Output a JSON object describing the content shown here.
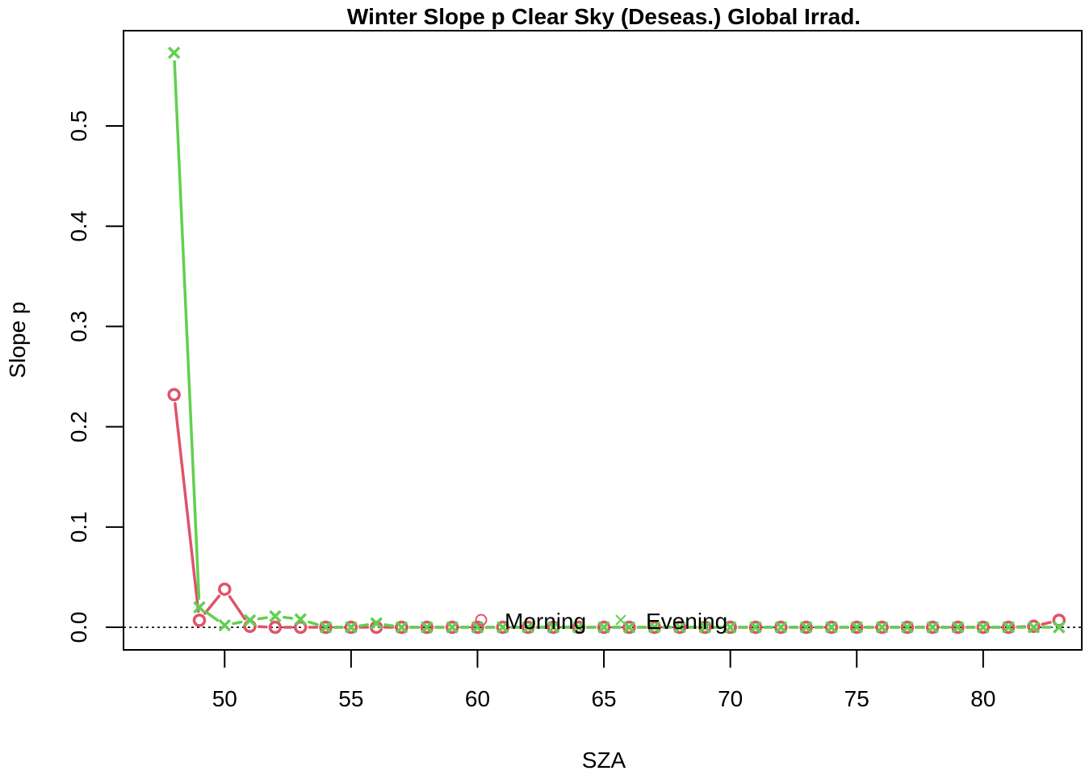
{
  "chart_data": {
    "type": "line",
    "title": "Winter Slope p Clear Sky (Deseas.) Global Irrad.",
    "xlabel": "SZA",
    "ylabel": "Slope p",
    "xlim": [
      46.0,
      83.9
    ],
    "ylim": [
      -0.0225,
      0.595
    ],
    "x_ticks": [
      50,
      55,
      60,
      65,
      70,
      75,
      80
    ],
    "y_ticks": [
      0.0,
      0.1,
      0.2,
      0.3,
      0.4,
      0.5
    ],
    "y_tick_labels": [
      "0.0",
      "0.1",
      "0.2",
      "0.3",
      "0.4",
      "0.5"
    ],
    "reference_line": {
      "y": 0,
      "style": "dotted"
    },
    "legend": {
      "placement": "bottom-center",
      "entries": [
        "Morning",
        "Evening"
      ]
    },
    "series": [
      {
        "name": "Morning",
        "marker": "circle",
        "color": "#DF536B",
        "points": [
          [
            48,
            0.232
          ],
          [
            49,
            0.007
          ],
          [
            50,
            0.038
          ],
          [
            51,
            0.001
          ],
          [
            52,
            0.0
          ],
          [
            53,
            0.0
          ],
          [
            54,
            0.0
          ],
          [
            55,
            0.0
          ],
          [
            56,
            0.0
          ],
          [
            57,
            0.0
          ],
          [
            58,
            0.0
          ],
          [
            59,
            0.0
          ],
          [
            60,
            0.0
          ],
          [
            61,
            0.0
          ],
          [
            62,
            0.0
          ],
          [
            63,
            0.0
          ],
          [
            64,
            0.0
          ],
          [
            65,
            0.0
          ],
          [
            66,
            0.0
          ],
          [
            67,
            0.0
          ],
          [
            68,
            0.0
          ],
          [
            69,
            0.0
          ],
          [
            70,
            0.0
          ],
          [
            71,
            0.0
          ],
          [
            72,
            0.0
          ],
          [
            73,
            0.0
          ],
          [
            74,
            0.0
          ],
          [
            75,
            0.0
          ],
          [
            76,
            0.0
          ],
          [
            77,
            0.0
          ],
          [
            78,
            0.0
          ],
          [
            79,
            0.0
          ],
          [
            80,
            0.0
          ],
          [
            81,
            0.0
          ],
          [
            82,
            0.001
          ],
          [
            83,
            0.007
          ]
        ]
      },
      {
        "name": "Evening",
        "marker": "x",
        "color": "#61D04F",
        "points": [
          [
            48,
            0.573
          ],
          [
            49,
            0.02
          ],
          [
            50,
            0.002
          ],
          [
            51,
            0.007
          ],
          [
            52,
            0.011
          ],
          [
            53,
            0.008
          ],
          [
            54,
            0.0
          ],
          [
            55,
            0.0
          ],
          [
            56,
            0.004
          ],
          [
            57,
            0.0
          ],
          [
            58,
            0.0
          ],
          [
            59,
            0.0
          ],
          [
            60,
            0.0
          ],
          [
            61,
            0.0
          ],
          [
            62,
            0.0
          ],
          [
            63,
            0.0
          ],
          [
            64,
            0.0
          ],
          [
            65,
            0.0
          ],
          [
            66,
            0.0
          ],
          [
            67,
            0.0
          ],
          [
            68,
            0.0
          ],
          [
            69,
            0.0
          ],
          [
            70,
            0.0
          ],
          [
            71,
            0.0
          ],
          [
            72,
            0.0
          ],
          [
            73,
            0.0
          ],
          [
            74,
            0.0
          ],
          [
            75,
            0.0
          ],
          [
            76,
            0.0
          ],
          [
            77,
            0.0
          ],
          [
            78,
            0.0
          ],
          [
            79,
            0.0
          ],
          [
            80,
            0.0
          ],
          [
            81,
            0.0
          ],
          [
            82,
            0.0
          ],
          [
            83,
            0.0
          ]
        ]
      }
    ]
  }
}
